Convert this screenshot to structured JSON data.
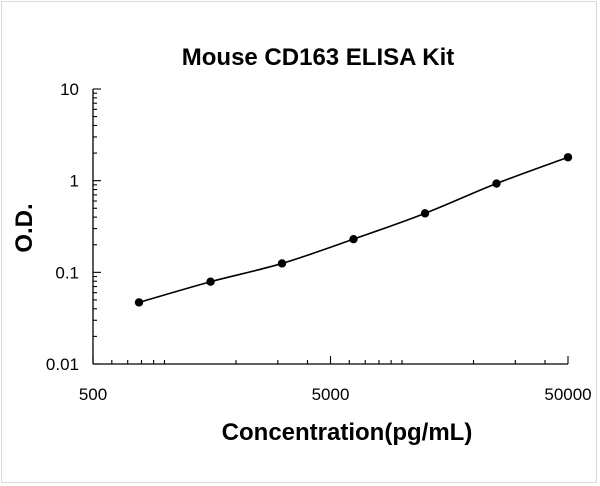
{
  "chart_data": {
    "type": "scatter",
    "title": "Mouse CD163 ELISA Kit",
    "xlabel": "Concentration(pg/mL)",
    "ylabel": "O.D.",
    "x_scale": "log",
    "y_scale": "log",
    "xlim": [
      500,
      50000
    ],
    "ylim": [
      0.01,
      10
    ],
    "x_tick_labels": [
      "500",
      "5000",
      "50000"
    ],
    "y_tick_labels": [
      "10",
      "1",
      "0.1",
      "0.01"
    ],
    "grid": false,
    "legend": "none",
    "series": [
      {
        "x": [
          781,
          1563,
          3125,
          6250,
          12500,
          25000,
          50000
        ],
        "y": [
          0.047,
          0.079,
          0.125,
          0.23,
          0.44,
          0.93,
          1.8
        ]
      }
    ],
    "trendline": true,
    "colors": {
      "marker": "#000000",
      "line": "#000000"
    }
  }
}
